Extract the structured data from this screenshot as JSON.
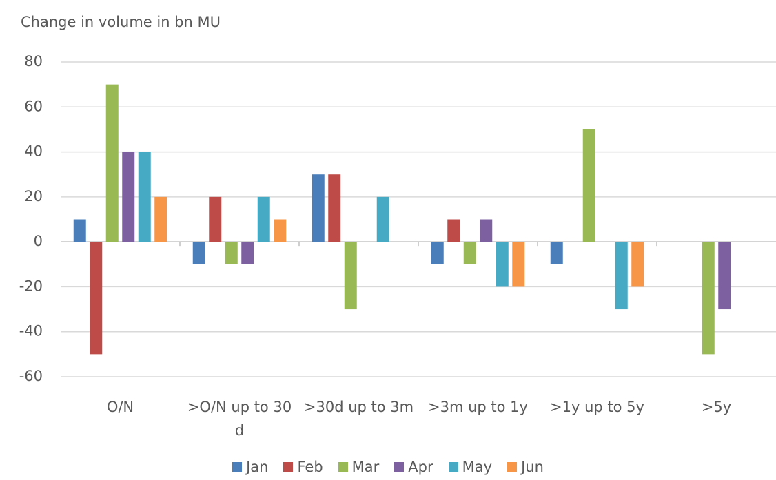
{
  "chart_data": {
    "type": "bar",
    "title": "Change in volume in bn MU",
    "categories": [
      "O/N",
      ">O/N up to 30 d",
      ">30d up to 3m",
      ">3m up to 1y",
      ">1y up to 5y",
      ">5y"
    ],
    "series": [
      {
        "name": "Jan",
        "color": "#4a7ebb",
        "values": [
          10,
          -10,
          30,
          -10,
          -10,
          0
        ]
      },
      {
        "name": "Feb",
        "color": "#be4b48",
        "values": [
          -50,
          20,
          30,
          10,
          0,
          0
        ]
      },
      {
        "name": "Mar",
        "color": "#98b954",
        "values": [
          70,
          -10,
          -30,
          -10,
          50,
          -50
        ]
      },
      {
        "name": "Apr",
        "color": "#7d60a0",
        "values": [
          40,
          -10,
          0,
          10,
          0,
          -30
        ]
      },
      {
        "name": "May",
        "color": "#46aac5",
        "values": [
          40,
          20,
          20,
          -20,
          -30,
          0
        ]
      },
      {
        "name": "Jun",
        "color": "#f79646",
        "values": [
          20,
          10,
          0,
          -20,
          -20,
          0
        ]
      }
    ],
    "ylim": [
      -60,
      80
    ],
    "yticks": [
      -60,
      -40,
      -20,
      0,
      20,
      40,
      60,
      80
    ],
    "grid": true
  }
}
